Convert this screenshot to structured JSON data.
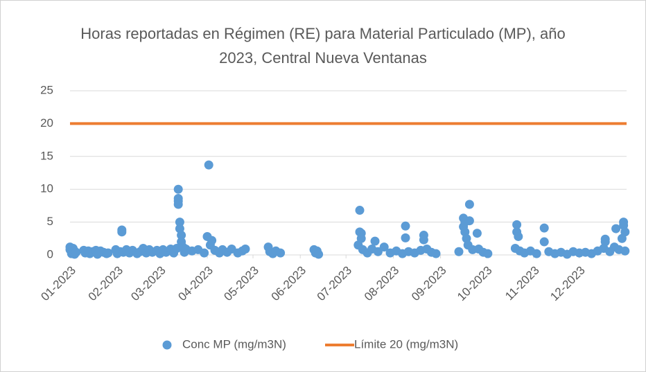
{
  "chart_data": {
    "type": "scatter",
    "title": "Horas reportadas en Régimen (RE) para Material Particulado (MP), año 2023, Central Nueva Ventanas",
    "xlim": [
      0,
      365
    ],
    "xticks": [
      {
        "value": 0,
        "label": "01-2023"
      },
      {
        "value": 31,
        "label": "02-2023"
      },
      {
        "value": 59,
        "label": "03-2023"
      },
      {
        "value": 90,
        "label": "04-2023"
      },
      {
        "value": 120,
        "label": "05-2023"
      },
      {
        "value": 151,
        "label": "06-2023"
      },
      {
        "value": 181,
        "label": "07-2023"
      },
      {
        "value": 212,
        "label": "08-2023"
      },
      {
        "value": 243,
        "label": "09-2023"
      },
      {
        "value": 273,
        "label": "10-2023"
      },
      {
        "value": 304,
        "label": "11-2023"
      },
      {
        "value": 334,
        "label": "12-2023"
      }
    ],
    "ylim": [
      0,
      25
    ],
    "yticks": [
      0,
      5,
      10,
      15,
      20,
      25
    ],
    "grid": true,
    "legend": "bottom",
    "series": [
      {
        "name": "Conc MP (mg/m3N)",
        "color": "#5b9bd5",
        "kind": "scatter",
        "x": [
          0,
          0,
          1,
          1,
          2,
          2,
          3,
          3,
          4,
          9,
          10,
          12,
          13,
          15,
          17,
          18,
          20,
          22,
          24,
          25,
          30,
          31,
          33,
          34,
          34,
          35,
          37,
          39,
          41,
          44,
          46,
          48,
          50,
          52,
          54,
          57,
          59,
          61,
          63,
          66,
          68,
          70,
          71,
          71,
          71,
          71,
          72,
          72,
          73,
          73,
          74,
          75,
          76,
          80,
          84,
          88,
          90,
          91,
          92,
          93,
          95,
          98,
          100,
          103,
          106,
          110,
          113,
          115,
          130,
          131,
          133,
          135,
          138,
          160,
          161,
          162,
          163,
          189,
          190,
          190,
          191,
          191,
          192,
          195,
          198,
          200,
          202,
          206,
          210,
          214,
          218,
          220,
          220,
          222,
          226,
          230,
          232,
          232,
          234,
          237,
          240,
          255,
          258,
          258,
          259,
          259,
          260,
          261,
          262,
          262,
          264,
          267,
          268,
          271,
          274,
          292,
          293,
          293,
          294,
          295,
          298,
          302,
          306,
          311,
          311,
          314,
          318,
          322,
          326,
          330,
          334,
          338,
          342,
          346,
          350,
          351,
          351,
          354,
          357,
          358,
          360,
          362,
          363,
          363,
          364,
          364
        ],
        "values": [
          1.2,
          0.8,
          0.5,
          0.2,
          1.0,
          0.3,
          0.6,
          0.1,
          0.4,
          0.7,
          0.3,
          0.6,
          0.2,
          0.5,
          0.7,
          0.1,
          0.6,
          0.4,
          0.2,
          0.3,
          0.8,
          0.2,
          0.5,
          3.8,
          3.5,
          0.4,
          0.8,
          0.3,
          0.7,
          0.2,
          0.5,
          1.0,
          0.3,
          0.8,
          0.4,
          0.7,
          0.2,
          0.8,
          0.4,
          0.9,
          0.3,
          1.0,
          10.0,
          8.6,
          8.2,
          7.7,
          5.0,
          4.0,
          3.0,
          2.0,
          1.2,
          0.4,
          0.9,
          0.6,
          0.8,
          0.3,
          2.8,
          13.7,
          1.5,
          2.2,
          0.7,
          0.3,
          0.8,
          0.4,
          0.9,
          0.3,
          0.6,
          0.9,
          1.2,
          0.5,
          0.2,
          0.6,
          0.3,
          0.8,
          0.3,
          0.6,
          0.1,
          1.5,
          6.8,
          3.5,
          3.3,
          2.5,
          0.8,
          0.3,
          0.9,
          2.1,
          0.5,
          1.2,
          0.3,
          0.6,
          0.2,
          4.4,
          2.6,
          0.5,
          0.3,
          0.7,
          3.0,
          2.3,
          0.9,
          0.4,
          0.2,
          0.5,
          5.6,
          4.3,
          5.0,
          3.5,
          2.5,
          1.5,
          7.7,
          5.2,
          0.8,
          3.3,
          0.9,
          0.4,
          0.2,
          1.0,
          4.6,
          3.5,
          2.8,
          0.6,
          0.3,
          0.6,
          0.2,
          4.1,
          2.0,
          0.5,
          0.2,
          0.4,
          0.1,
          0.5,
          0.3,
          0.4,
          0.2,
          0.6,
          1.0,
          2.4,
          2.0,
          0.5,
          1.2,
          4.0,
          0.8,
          2.5,
          5.0,
          4.5,
          3.5,
          0.6
        ]
      },
      {
        "name": "Límite 20 (mg/m3N)",
        "color": "#ed7d31",
        "kind": "line",
        "x": [
          0,
          365
        ],
        "values": [
          20,
          20
        ]
      }
    ]
  }
}
